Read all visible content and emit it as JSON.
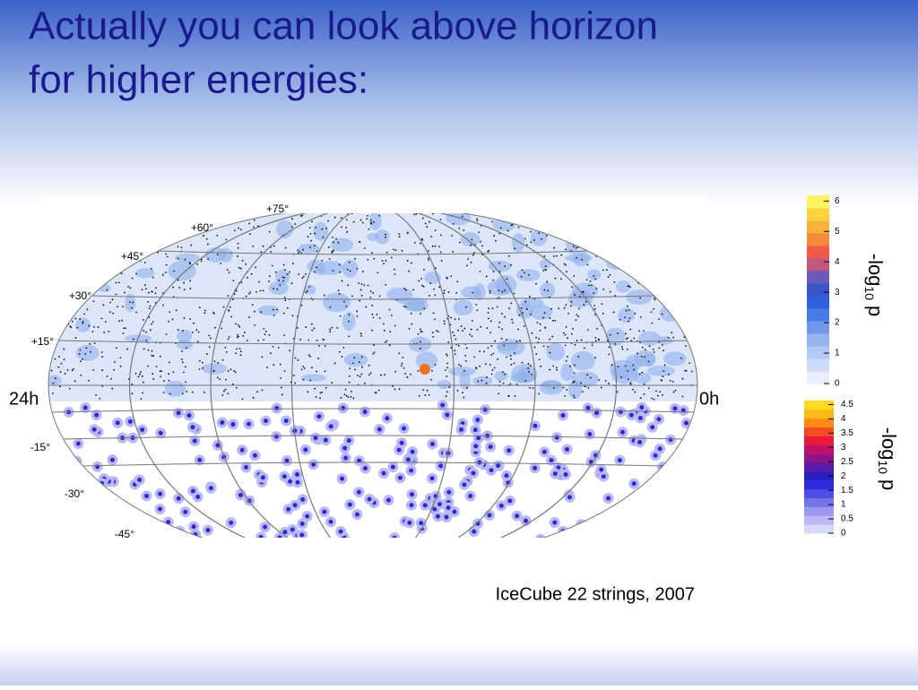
{
  "slide": {
    "title_lines": [
      "Actually you can look above horizon",
      "for higher energies:"
    ],
    "skymap": {
      "dec_labels": [
        "+75°",
        "+60°",
        "+45°",
        "+30°",
        "+15°",
        "-15°",
        "-30°",
        "-45°"
      ],
      "ra_left": "24h",
      "ra_right": "0h"
    },
    "colorbar_top": {
      "ticks": [
        "0",
        "1",
        "2",
        "3",
        "4",
        "5",
        "6"
      ],
      "label": {
        "main": "-log",
        "sub": "10",
        "var": "p"
      }
    },
    "colorbar_bottom": {
      "ticks": [
        "0",
        "0.5",
        "1",
        "1.5",
        "2",
        "2.5",
        "3",
        "3.5",
        "4",
        "4.5"
      ],
      "label": {
        "main": "-log",
        "sub": "10",
        "var": "p"
      }
    },
    "caption": "IceCube 22 strings, 2007"
  }
}
